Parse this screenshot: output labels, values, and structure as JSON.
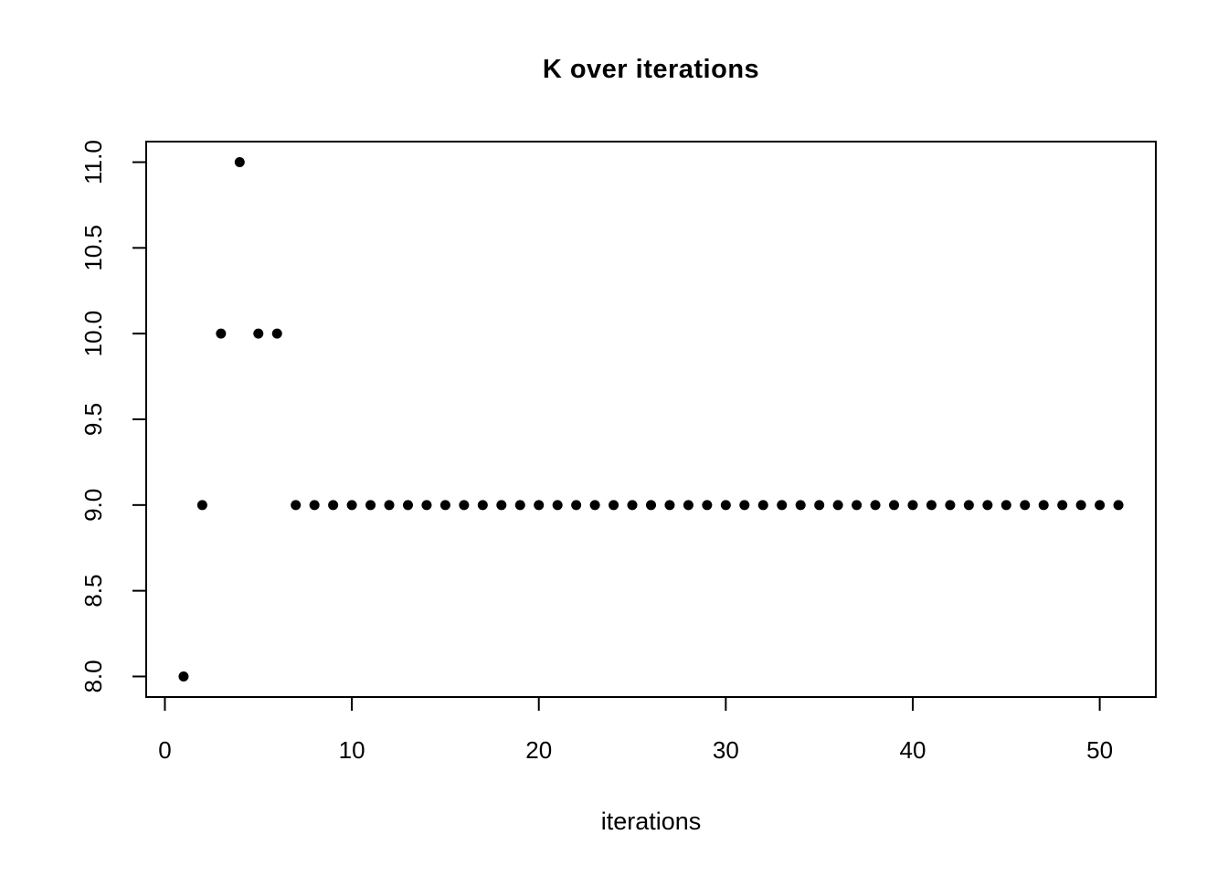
{
  "page": {
    "background_color": "#ffffff"
  },
  "chart_data": {
    "type": "scatter",
    "title": "K over iterations",
    "xlabel": "iterations",
    "ylabel": "",
    "x": [
      1,
      2,
      3,
      4,
      5,
      6,
      7,
      8,
      9,
      10,
      11,
      12,
      13,
      14,
      15,
      16,
      17,
      18,
      19,
      20,
      21,
      22,
      23,
      24,
      25,
      26,
      27,
      28,
      29,
      30,
      31,
      32,
      33,
      34,
      35,
      36,
      37,
      38,
      39,
      40,
      41,
      42,
      43,
      44,
      45,
      46,
      47,
      48,
      49,
      50,
      51
    ],
    "y": [
      8,
      9,
      10,
      11,
      10,
      10,
      9,
      9,
      9,
      9,
      9,
      9,
      9,
      9,
      9,
      9,
      9,
      9,
      9,
      9,
      9,
      9,
      9,
      9,
      9,
      9,
      9,
      9,
      9,
      9,
      9,
      9,
      9,
      9,
      9,
      9,
      9,
      9,
      9,
      9,
      9,
      9,
      9,
      9,
      9,
      9,
      9,
      9,
      9,
      9,
      9
    ],
    "x_ticks": [
      0,
      10,
      20,
      30,
      40,
      50
    ],
    "x_tick_labels": [
      "0",
      "10",
      "20",
      "30",
      "40",
      "50"
    ],
    "y_ticks": [
      8,
      8.5,
      9,
      9.5,
      10,
      10.5,
      11
    ],
    "y_tick_labels": [
      "8.0",
      "8.5",
      "9.0",
      "9.5",
      "10.0",
      "10.5",
      "11.0"
    ],
    "xlim": [
      -1,
      53
    ],
    "ylim": [
      7.88,
      11.12
    ],
    "grid": false,
    "legend": false,
    "point_color": "#000000",
    "axis_color": "#000000",
    "background_color": "#ffffff"
  }
}
